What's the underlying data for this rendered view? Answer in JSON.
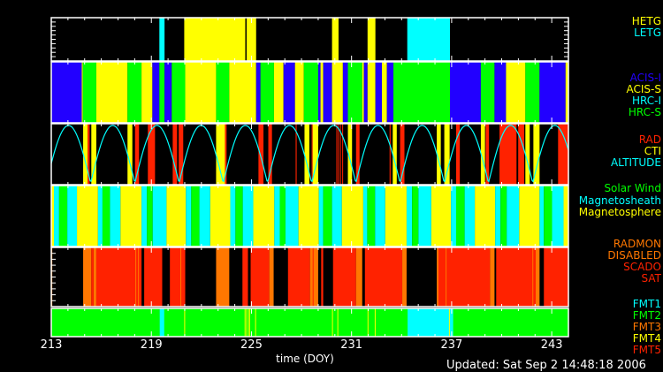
{
  "colors": {
    "yellow": "#ffff00",
    "cyan": "#00ffff",
    "green": "#00ff00",
    "blue": "#2200ff",
    "red": "#ff2200",
    "orange": "#ff7700",
    "white": "#ffffff"
  },
  "chart_data": {
    "type": "timeline",
    "xlabel": "time (DOY)",
    "xlim": [
      213,
      244
    ],
    "xticks": [
      "213",
      "219",
      "225",
      "231",
      "237",
      "243"
    ],
    "updated": "Updated: Sat Sep  2 14:48:18 2006",
    "panels": [
      {
        "legend": [
          {
            "label": "HETG",
            "color": "yellow"
          },
          {
            "label": "LETG",
            "color": "cyan"
          }
        ],
        "segments": [
          [
            219.48,
            219.79,
            "cyan"
          ],
          [
            220.97,
            224.63,
            "yellow"
          ],
          [
            224.71,
            225.28,
            "yellow"
          ],
          [
            229.83,
            230.22,
            "yellow"
          ],
          [
            231.96,
            232.43,
            "yellow"
          ],
          [
            234.34,
            236.9,
            "cyan"
          ]
        ]
      },
      {
        "legend": [
          {
            "label": "ACIS-I",
            "color": "blue"
          },
          {
            "label": "ACIS-S",
            "color": "yellow"
          },
          {
            "label": "HRC-I",
            "color": "cyan"
          },
          {
            "label": "HRC-S",
            "color": "green"
          }
        ],
        "segments": [
          [
            213.0,
            214.83,
            "blue"
          ],
          [
            214.83,
            214.89,
            "yellow"
          ],
          [
            214.89,
            215.7,
            "green"
          ],
          [
            215.7,
            217.57,
            "yellow"
          ],
          [
            217.57,
            218.41,
            "green"
          ],
          [
            218.41,
            219.06,
            "yellow"
          ],
          [
            219.06,
            219.48,
            "blue"
          ],
          [
            219.48,
            219.79,
            "green"
          ],
          [
            219.79,
            220.22,
            "blue"
          ],
          [
            220.22,
            221.03,
            "green"
          ],
          [
            221.03,
            222.88,
            "yellow"
          ],
          [
            222.88,
            223.67,
            "green"
          ],
          [
            223.67,
            225.28,
            "yellow"
          ],
          [
            225.28,
            225.54,
            "blue"
          ],
          [
            225.54,
            226.35,
            "green"
          ],
          [
            226.35,
            226.92,
            "yellow"
          ],
          [
            226.92,
            227.61,
            "blue"
          ],
          [
            227.61,
            228.14,
            "yellow"
          ],
          [
            228.14,
            229.0,
            "green"
          ],
          [
            229.0,
            229.14,
            "blue"
          ],
          [
            229.14,
            229.3,
            "yellow"
          ],
          [
            229.3,
            229.83,
            "blue"
          ],
          [
            229.83,
            230.48,
            "yellow"
          ],
          [
            230.48,
            230.78,
            "blue"
          ],
          [
            230.78,
            231.64,
            "green"
          ],
          [
            231.64,
            231.74,
            "yellow"
          ],
          [
            231.74,
            231.96,
            "blue"
          ],
          [
            231.96,
            232.43,
            "yellow"
          ],
          [
            232.43,
            232.82,
            "blue"
          ],
          [
            232.82,
            233.12,
            "yellow"
          ],
          [
            233.12,
            233.51,
            "blue"
          ],
          [
            233.51,
            236.9,
            "green"
          ],
          [
            236.9,
            238.75,
            "blue"
          ],
          [
            238.75,
            239.57,
            "green"
          ],
          [
            239.57,
            240.26,
            "blue"
          ],
          [
            240.26,
            241.42,
            "yellow"
          ],
          [
            241.42,
            242.27,
            "green"
          ],
          [
            242.27,
            243.83,
            "blue"
          ],
          [
            243.83,
            244.0,
            "yellow"
          ]
        ]
      },
      {
        "legend": [
          {
            "label": "RAD",
            "color": "red"
          },
          {
            "label": "CTI",
            "color": "yellow"
          },
          {
            "label": "ALTITUDE",
            "color": "cyan"
          }
        ],
        "segments": [
          [
            214.91,
            215.18,
            "yellow"
          ],
          [
            215.18,
            215.3,
            "red"
          ],
          [
            215.4,
            215.7,
            "yellow"
          ],
          [
            217.57,
            217.86,
            "yellow"
          ],
          [
            218.02,
            218.26,
            "red"
          ],
          [
            218.79,
            219.22,
            "red"
          ],
          [
            220.28,
            220.54,
            "red"
          ],
          [
            220.64,
            220.91,
            "red"
          ],
          [
            222.88,
            223.41,
            "yellow"
          ],
          [
            223.41,
            223.51,
            "red"
          ],
          [
            225.42,
            225.72,
            "red"
          ],
          [
            226.01,
            226.23,
            "red"
          ],
          [
            227.65,
            227.71,
            "red"
          ],
          [
            228.18,
            228.47,
            "yellow"
          ],
          [
            228.61,
            228.67,
            "red"
          ],
          [
            228.67,
            229.0,
            "yellow"
          ],
          [
            230.09,
            230.13,
            "red"
          ],
          [
            230.19,
            230.23,
            "red"
          ],
          [
            230.31,
            230.35,
            "red"
          ],
          [
            230.44,
            230.48,
            "red"
          ],
          [
            230.78,
            231.03,
            "yellow"
          ],
          [
            231.27,
            231.48,
            "red"
          ],
          [
            233.28,
            233.34,
            "red"
          ],
          [
            233.47,
            233.71,
            "yellow"
          ],
          [
            233.91,
            234.17,
            "red"
          ],
          [
            236.11,
            236.35,
            "yellow"
          ],
          [
            236.56,
            236.88,
            "yellow"
          ],
          [
            237.27,
            237.49,
            "red"
          ],
          [
            238.75,
            239.0,
            "yellow"
          ],
          [
            239.04,
            239.24,
            "red"
          ],
          [
            239.87,
            240.89,
            "red"
          ],
          [
            240.99,
            241.35,
            "red"
          ],
          [
            241.42,
            241.68,
            "yellow"
          ],
          [
            241.9,
            242.27,
            "yellow"
          ],
          [
            243.38,
            244.0,
            "red"
          ]
        ],
        "altitude": {
          "shape": "abs-sine",
          "first_minimum_doy": 215.36,
          "period_days": 2.65
        }
      },
      {
        "legend": [
          {
            "label": "Solar Wind",
            "color": "green"
          },
          {
            "label": "Magnetosheath",
            "color": "cyan"
          },
          {
            "label": "Magnetosphere",
            "color": "yellow"
          }
        ],
        "segments": [
          [
            213.0,
            213.16,
            "yellow"
          ],
          [
            213.16,
            213.47,
            "cyan"
          ],
          [
            213.47,
            213.96,
            "green"
          ],
          [
            213.96,
            214.54,
            "cyan"
          ],
          [
            214.54,
            215.8,
            "yellow"
          ],
          [
            215.8,
            216.07,
            "cyan"
          ],
          [
            216.07,
            216.52,
            "green"
          ],
          [
            216.52,
            217.15,
            "cyan"
          ],
          [
            217.15,
            218.41,
            "yellow"
          ],
          [
            218.41,
            218.73,
            "cyan"
          ],
          [
            218.73,
            219.08,
            "green"
          ],
          [
            219.08,
            219.91,
            "cyan"
          ],
          [
            219.91,
            221.07,
            "yellow"
          ],
          [
            221.07,
            221.39,
            "cyan"
          ],
          [
            221.39,
            221.88,
            "green"
          ],
          [
            221.88,
            222.53,
            "cyan"
          ],
          [
            222.53,
            223.73,
            "yellow"
          ],
          [
            223.73,
            224.04,
            "cyan"
          ],
          [
            224.04,
            224.48,
            "green"
          ],
          [
            224.48,
            225.11,
            "cyan"
          ],
          [
            225.11,
            226.37,
            "yellow"
          ],
          [
            226.37,
            226.7,
            "cyan"
          ],
          [
            226.7,
            227.04,
            "green"
          ],
          [
            227.04,
            227.82,
            "cyan"
          ],
          [
            227.82,
            229.04,
            "yellow"
          ],
          [
            229.04,
            229.3,
            "cyan"
          ],
          [
            229.3,
            229.83,
            "green"
          ],
          [
            229.83,
            230.42,
            "cyan"
          ],
          [
            230.42,
            231.7,
            "yellow"
          ],
          [
            231.7,
            231.94,
            "cyan"
          ],
          [
            231.94,
            232.41,
            "green"
          ],
          [
            232.41,
            233.02,
            "cyan"
          ],
          [
            233.02,
            234.3,
            "yellow"
          ],
          [
            234.3,
            234.63,
            "cyan"
          ],
          [
            234.63,
            235.01,
            "green"
          ],
          [
            235.01,
            235.78,
            "cyan"
          ],
          [
            235.78,
            236.96,
            "yellow"
          ],
          [
            236.96,
            237.27,
            "cyan"
          ],
          [
            237.27,
            237.78,
            "green"
          ],
          [
            237.78,
            238.39,
            "cyan"
          ],
          [
            238.39,
            239.61,
            "yellow"
          ],
          [
            239.61,
            239.93,
            "cyan"
          ],
          [
            239.93,
            240.3,
            "green"
          ],
          [
            240.3,
            241.05,
            "cyan"
          ],
          [
            241.05,
            242.27,
            "yellow"
          ],
          [
            242.27,
            242.53,
            "cyan"
          ],
          [
            242.53,
            243.02,
            "green"
          ],
          [
            243.02,
            243.71,
            "cyan"
          ],
          [
            243.71,
            244.0,
            "yellow"
          ]
        ]
      },
      {
        "legend": [
          {
            "label": "RADMON",
            "color": "orange"
          },
          {
            "label": "DISABLED",
            "color": "orange"
          },
          {
            "label": "SCADO",
            "color": "red"
          },
          {
            "label": "SAT",
            "color": "red"
          }
        ],
        "segments": [
          [
            213.0,
            213.06,
            "orange"
          ],
          [
            214.91,
            215.4,
            "orange"
          ],
          [
            215.4,
            215.54,
            "red"
          ],
          [
            215.54,
            215.7,
            "orange"
          ],
          [
            215.7,
            218.41,
            "red"
          ],
          [
            218.04,
            218.08,
            "orange"
          ],
          [
            218.2,
            218.24,
            "orange"
          ],
          [
            218.57,
            219.65,
            "red"
          ],
          [
            220.11,
            221.03,
            "red"
          ],
          [
            220.74,
            220.78,
            "orange"
          ],
          [
            222.88,
            223.67,
            "orange"
          ],
          [
            224.46,
            224.79,
            "red"
          ],
          [
            224.95,
            226.07,
            "red"
          ],
          [
            226.07,
            226.33,
            "orange"
          ],
          [
            227.19,
            228.51,
            "red"
          ],
          [
            228.51,
            229.0,
            "orange"
          ],
          [
            228.67,
            228.71,
            "red"
          ],
          [
            229.18,
            229.3,
            "red"
          ],
          [
            229.89,
            231.27,
            "red"
          ],
          [
            231.27,
            231.64,
            "orange"
          ],
          [
            231.8,
            234.04,
            "red"
          ],
          [
            234.04,
            234.3,
            "orange"
          ],
          [
            236.11,
            236.21,
            "orange"
          ],
          [
            236.21,
            239.3,
            "red"
          ],
          [
            236.64,
            236.68,
            "orange"
          ],
          [
            239.3,
            239.57,
            "orange"
          ],
          [
            239.67,
            242.04,
            "red"
          ],
          [
            241.84,
            241.88,
            "orange"
          ],
          [
            242.04,
            242.27,
            "orange"
          ],
          [
            242.53,
            244.0,
            "red"
          ]
        ]
      },
      {
        "legend": [
          {
            "label": "FMT1",
            "color": "cyan"
          },
          {
            "label": "FMT2",
            "color": "green"
          },
          {
            "label": "FMT3",
            "color": "orange"
          },
          {
            "label": "FMT4",
            "color": "yellow"
          },
          {
            "label": "FMT5",
            "color": "red"
          }
        ],
        "segments": [
          [
            213.0,
            244.0,
            "green"
          ],
          [
            219.5,
            219.77,
            "cyan"
          ],
          [
            220.97,
            221.01,
            "yellow"
          ],
          [
            224.59,
            224.63,
            "yellow"
          ],
          [
            224.69,
            224.73,
            "yellow"
          ],
          [
            224.83,
            224.91,
            "yellow"
          ],
          [
            225.22,
            225.26,
            "yellow"
          ],
          [
            229.83,
            229.87,
            "yellow"
          ],
          [
            230.15,
            230.19,
            "yellow"
          ],
          [
            231.96,
            232.0,
            "yellow"
          ],
          [
            232.39,
            232.43,
            "yellow"
          ],
          [
            234.36,
            237.09,
            "cyan"
          ],
          [
            236.84,
            236.88,
            "yellow"
          ]
        ]
      }
    ]
  }
}
